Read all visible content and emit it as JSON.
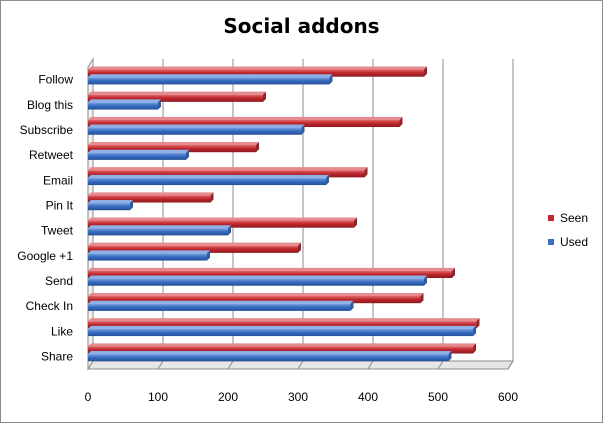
{
  "chart_data": {
    "type": "bar",
    "orientation": "horizontal",
    "title": "Social addons",
    "xlabel": "",
    "ylabel": "",
    "xlim": [
      0,
      600
    ],
    "x_ticks": [
      0,
      100,
      200,
      300,
      400,
      500,
      600
    ],
    "grid": true,
    "legend_position": "right",
    "categories": [
      "Follow",
      "Blog this",
      "Subscribe",
      "Retweet",
      "Email",
      "Pin It",
      "Tweet",
      "Google +1",
      "Send",
      "Check In",
      "Like",
      "Share"
    ],
    "series": [
      {
        "name": "Seen",
        "color": "#c0272d",
        "values": [
          480,
          250,
          445,
          240,
          395,
          175,
          380,
          300,
          520,
          475,
          555,
          550
        ]
      },
      {
        "name": "Used",
        "color": "#3a6fc4",
        "values": [
          345,
          100,
          305,
          140,
          340,
          60,
          200,
          170,
          480,
          375,
          550,
          515
        ]
      }
    ]
  }
}
